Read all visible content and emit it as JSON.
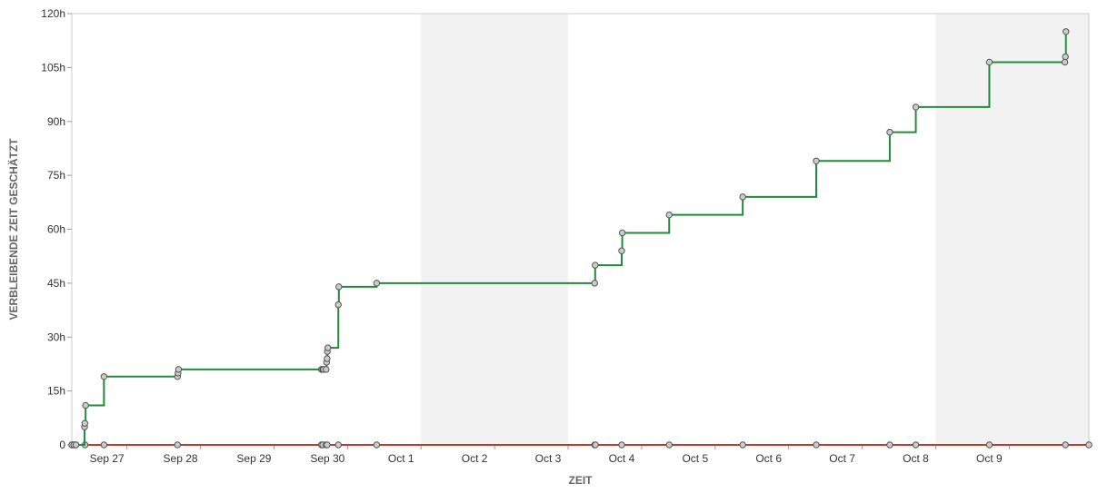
{
  "chart_data": {
    "type": "line",
    "title": "",
    "xlabel": "ZEIT",
    "ylabel": "VERBLEIBENDE ZEIT GESCHÄTZT",
    "ylim": [
      0,
      120
    ],
    "yunit": "h",
    "y_ticks": [
      0,
      15,
      30,
      45,
      60,
      75,
      90,
      105,
      120
    ],
    "y_tick_labels": [
      "0",
      "15h",
      "30h",
      "45h",
      "60h",
      "75h",
      "90h",
      "105h",
      "120h"
    ],
    "xlim": [
      "2023-09-26T06:00",
      "2023-10-10T02:00"
    ],
    "x_ticks": [
      "2023-09-27T00:00",
      "2023-09-28T00:00",
      "2023-09-29T00:00",
      "2023-09-30T00:00",
      "2023-10-01T00:00",
      "2023-10-02T00:00",
      "2023-10-03T00:00",
      "2023-10-04T00:00",
      "2023-10-05T00:00",
      "2023-10-06T00:00",
      "2023-10-07T00:00",
      "2023-10-08T00:00",
      "2023-10-09T00:00"
    ],
    "x_tick_labels": [
      "Sep 27",
      "Sep 28",
      "Sep 29",
      "Sep 30",
      "Oct 1",
      "Oct 2",
      "Oct 3",
      "Oct 4",
      "Oct 5",
      "Oct 6",
      "Oct 7",
      "Oct 8",
      "Oct 9"
    ],
    "grid": false,
    "shaded_ranges": [
      [
        "2023-10-01T00:00",
        "2023-10-03T00:00"
      ],
      [
        "2023-10-08T00:00",
        "2023-10-10T02:00"
      ]
    ],
    "colors": {
      "estimated": "#228b3a",
      "zero_line": "#c0392b",
      "marker_fill": "#cccccc",
      "marker_stroke": "#555555",
      "shade": "#f2f2f2",
      "plot_border": "#cccccc"
    },
    "series": [
      {
        "step": true,
        "color": "#228b3a",
        "points": [
          [
            "2023-09-26T06:00",
            0
          ],
          [
            "2023-09-26T06:40",
            0
          ],
          [
            "2023-09-26T07:20",
            0
          ],
          [
            "2023-09-26T10:10",
            5
          ],
          [
            "2023-09-26T10:15",
            6
          ],
          [
            "2023-09-26T10:30",
            11
          ],
          [
            "2023-09-26T16:30",
            19
          ],
          [
            "2023-09-27T16:30",
            19
          ],
          [
            "2023-09-27T16:40",
            20
          ],
          [
            "2023-09-27T16:50",
            21
          ],
          [
            "2023-09-29T15:30",
            21
          ],
          [
            "2023-09-29T15:55",
            21
          ],
          [
            "2023-09-29T16:10",
            21
          ],
          [
            "2023-09-29T17:00",
            21
          ],
          [
            "2023-09-29T17:10",
            23
          ],
          [
            "2023-09-29T17:20",
            24
          ],
          [
            "2023-09-29T17:25",
            26
          ],
          [
            "2023-09-29T17:35",
            27
          ],
          [
            "2023-09-29T21:00",
            39
          ],
          [
            "2023-09-29T21:10",
            44
          ],
          [
            "2023-09-30T09:30",
            45
          ],
          [
            "2023-10-03T08:40",
            45
          ],
          [
            "2023-10-03T08:50",
            50
          ],
          [
            "2023-10-03T17:30",
            54
          ],
          [
            "2023-10-03T17:40",
            59
          ],
          [
            "2023-10-04T09:00",
            64
          ],
          [
            "2023-10-05T09:00",
            69
          ],
          [
            "2023-10-06T09:00",
            79
          ],
          [
            "2023-10-07T09:00",
            87
          ],
          [
            "2023-10-07T17:30",
            94
          ],
          [
            "2023-10-08T17:30",
            106.5
          ],
          [
            "2023-10-09T18:10",
            106.5
          ],
          [
            "2023-10-09T18:20",
            108
          ],
          [
            "2023-10-09T18:30",
            115
          ]
        ]
      },
      {
        "step": true,
        "color": "#c0392b",
        "points": [
          [
            "2023-09-26T06:00",
            0
          ],
          [
            "2023-09-26T06:40",
            0
          ],
          [
            "2023-09-26T07:20",
            0
          ],
          [
            "2023-09-26T10:20",
            0
          ],
          [
            "2023-09-26T16:30",
            0
          ],
          [
            "2023-09-27T16:30",
            0
          ],
          [
            "2023-09-29T15:30",
            0
          ],
          [
            "2023-09-29T15:55",
            0
          ],
          [
            "2023-09-29T17:00",
            0
          ],
          [
            "2023-09-29T17:20",
            0
          ],
          [
            "2023-09-29T21:00",
            0
          ],
          [
            "2023-09-30T09:30",
            0
          ],
          [
            "2023-10-03T08:40",
            0
          ],
          [
            "2023-10-03T08:55",
            0
          ],
          [
            "2023-10-03T17:30",
            0
          ],
          [
            "2023-10-04T09:00",
            0
          ],
          [
            "2023-10-05T09:00",
            0
          ],
          [
            "2023-10-06T09:00",
            0
          ],
          [
            "2023-10-07T09:00",
            0
          ],
          [
            "2023-10-07T17:30",
            0
          ],
          [
            "2023-10-08T17:30",
            0
          ],
          [
            "2023-10-09T18:20",
            0
          ],
          [
            "2023-10-10T02:00",
            0
          ]
        ]
      }
    ]
  }
}
